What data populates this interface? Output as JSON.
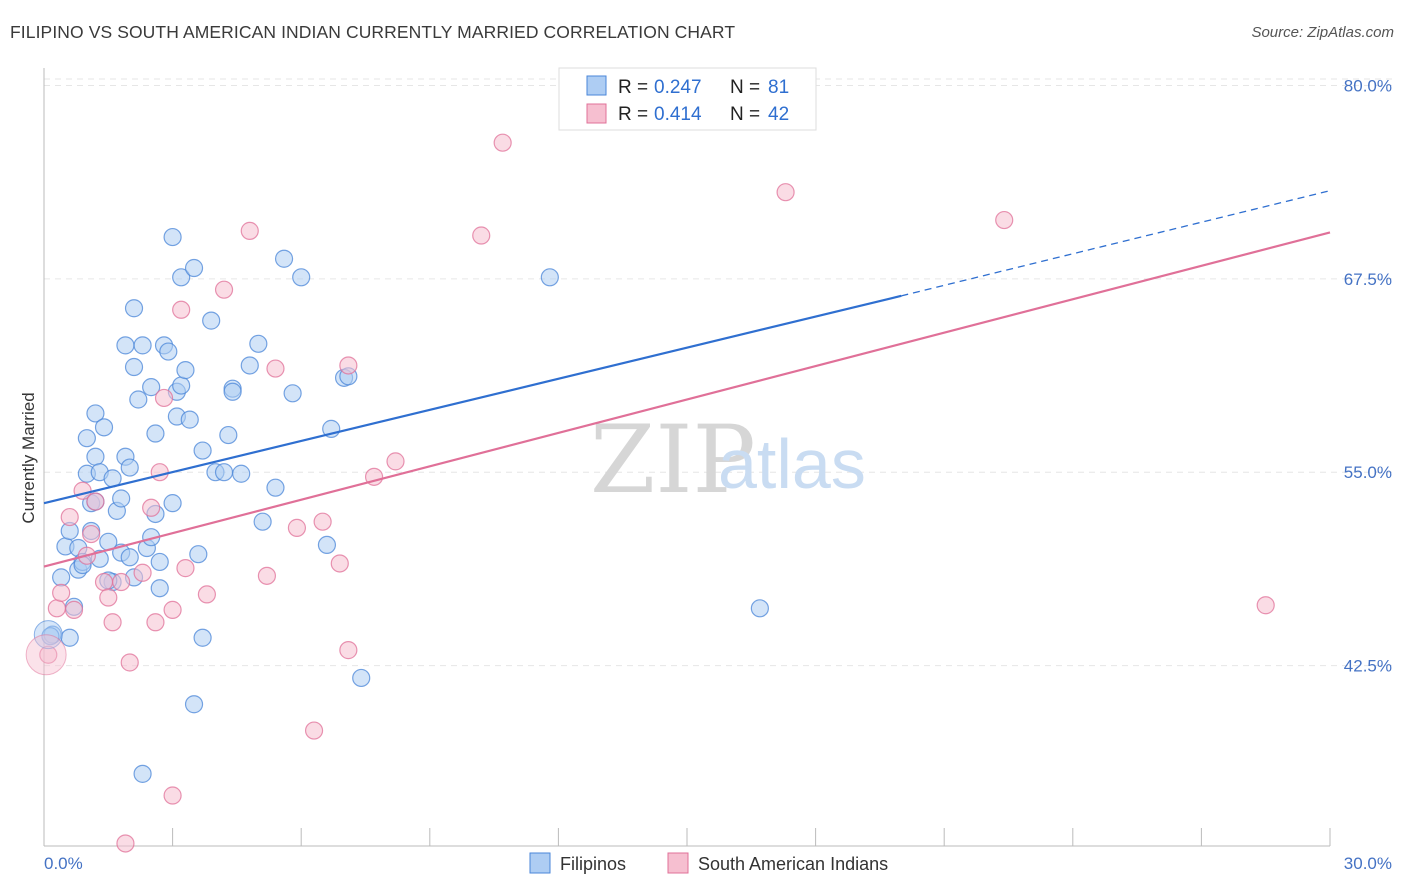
{
  "title": "FILIPINO VS SOUTH AMERICAN INDIAN CURRENTLY MARRIED CORRELATION CHART",
  "source": "Source: ZipAtlas.com",
  "watermark": {
    "zip": "ZIP",
    "atlas": "atlas"
  },
  "chart_data": {
    "type": "scatter",
    "ylabel": "Currently Married",
    "xlabel": "",
    "xlim": [
      0,
      30
    ],
    "ylim": [
      32,
      81
    ],
    "x_tick_labels": [
      "0.0%",
      "30.0%"
    ],
    "y_ticks": [
      42.5,
      55.0,
      67.5,
      80.0
    ],
    "y_tick_labels": [
      "42.5%",
      "55.0%",
      "67.5%",
      "80.0%"
    ],
    "grid": "horizontal dashed",
    "legend_position": "top-center",
    "legend": [
      {
        "r_label": "R =",
        "r_value": "0.247",
        "n_label": "N =",
        "n_value": "81"
      },
      {
        "r_label": "R =",
        "r_value": "0.414",
        "n_label": "N =",
        "n_value": "42"
      }
    ],
    "series": [
      {
        "name": "Filipinos",
        "color": "#4a86d8",
        "fill": "#aecdf3",
        "trend": {
          "x0": 0,
          "y0": 53.0,
          "x1": 20,
          "y1": 66.4,
          "dash_to_x": 30,
          "dash_to_y": 73.2
        },
        "points": [
          [
            0.2,
            44.5
          ],
          [
            0.4,
            48.2
          ],
          [
            0.5,
            50.2
          ],
          [
            0.6,
            51.2
          ],
          [
            0.6,
            44.3
          ],
          [
            0.7,
            46.3
          ],
          [
            0.8,
            48.7
          ],
          [
            0.8,
            50.1
          ],
          [
            0.9,
            49.2
          ],
          [
            1.0,
            54.9
          ],
          [
            1.0,
            57.2
          ],
          [
            1.1,
            53.0
          ],
          [
            1.1,
            51.2
          ],
          [
            1.2,
            56.0
          ],
          [
            1.2,
            58.8
          ],
          [
            1.3,
            55.0
          ],
          [
            1.3,
            49.4
          ],
          [
            1.4,
            57.9
          ],
          [
            1.5,
            50.5
          ],
          [
            1.6,
            54.6
          ],
          [
            1.6,
            47.9
          ],
          [
            1.7,
            52.5
          ],
          [
            1.8,
            53.3
          ],
          [
            1.8,
            49.8
          ],
          [
            1.9,
            63.2
          ],
          [
            1.9,
            56.0
          ],
          [
            2.0,
            49.5
          ],
          [
            2.0,
            55.3
          ],
          [
            2.1,
            61.8
          ],
          [
            2.1,
            65.6
          ],
          [
            2.2,
            59.7
          ],
          [
            2.3,
            63.2
          ],
          [
            2.3,
            35.5
          ],
          [
            2.4,
            50.1
          ],
          [
            2.5,
            50.8
          ],
          [
            2.5,
            60.5
          ],
          [
            2.6,
            57.5
          ],
          [
            2.6,
            52.3
          ],
          [
            2.7,
            49.2
          ],
          [
            2.7,
            47.5
          ],
          [
            2.8,
            63.2
          ],
          [
            2.9,
            62.8
          ],
          [
            3.0,
            53.0
          ],
          [
            3.0,
            70.2
          ],
          [
            3.1,
            58.6
          ],
          [
            3.1,
            60.2
          ],
          [
            3.2,
            67.6
          ],
          [
            3.2,
            60.6
          ],
          [
            3.3,
            61.6
          ],
          [
            3.4,
            58.4
          ],
          [
            3.5,
            68.2
          ],
          [
            3.5,
            40.0
          ],
          [
            3.6,
            49.7
          ],
          [
            3.7,
            44.3
          ],
          [
            3.7,
            56.4
          ],
          [
            3.9,
            64.8
          ],
          [
            4.0,
            55.0
          ],
          [
            4.2,
            55.0
          ],
          [
            4.3,
            57.4
          ],
          [
            4.4,
            60.4
          ],
          [
            4.4,
            60.2
          ],
          [
            4.6,
            54.9
          ],
          [
            4.8,
            61.9
          ],
          [
            5.0,
            63.3
          ],
          [
            5.1,
            51.8
          ],
          [
            5.4,
            54.0
          ],
          [
            5.6,
            68.8
          ],
          [
            5.8,
            60.1
          ],
          [
            6.0,
            67.6
          ],
          [
            6.6,
            50.3
          ],
          [
            6.7,
            57.8
          ],
          [
            7.0,
            61.1
          ],
          [
            7.1,
            61.2
          ],
          [
            7.4,
            41.7
          ],
          [
            11.8,
            67.6
          ],
          [
            16.7,
            46.2
          ],
          [
            0.15,
            44.4
          ],
          [
            1.5,
            48.0
          ],
          [
            2.1,
            48.2
          ],
          [
            0.9,
            49.0
          ],
          [
            1.2,
            53.1
          ]
        ]
      },
      {
        "name": "South American Indians",
        "color": "#e07098",
        "fill": "#f6bfd0",
        "trend": {
          "x0": 0,
          "y0": 48.9,
          "x1": 30,
          "y1": 70.5
        },
        "points": [
          [
            0.1,
            43.2
          ],
          [
            0.3,
            46.2
          ],
          [
            0.4,
            47.2
          ],
          [
            0.6,
            52.1
          ],
          [
            0.7,
            46.1
          ],
          [
            0.9,
            53.8
          ],
          [
            1.0,
            49.6
          ],
          [
            1.1,
            51.0
          ],
          [
            1.2,
            53.1
          ],
          [
            1.4,
            47.9
          ],
          [
            1.5,
            46.9
          ],
          [
            1.6,
            45.3
          ],
          [
            1.8,
            47.9
          ],
          [
            1.9,
            31.0
          ],
          [
            2.0,
            42.7
          ],
          [
            2.3,
            48.5
          ],
          [
            2.5,
            52.7
          ],
          [
            2.6,
            45.3
          ],
          [
            2.7,
            55.0
          ],
          [
            2.8,
            59.8
          ],
          [
            3.0,
            46.1
          ],
          [
            3.0,
            34.1
          ],
          [
            3.2,
            65.5
          ],
          [
            3.3,
            48.8
          ],
          [
            3.8,
            47.1
          ],
          [
            4.2,
            66.8
          ],
          [
            4.8,
            70.6
          ],
          [
            5.2,
            48.3
          ],
          [
            5.4,
            61.7
          ],
          [
            5.9,
            51.4
          ],
          [
            6.3,
            38.3
          ],
          [
            6.5,
            51.8
          ],
          [
            6.9,
            49.1
          ],
          [
            7.1,
            61.9
          ],
          [
            7.1,
            43.5
          ],
          [
            7.7,
            54.7
          ],
          [
            8.2,
            55.7
          ],
          [
            10.2,
            70.3
          ],
          [
            10.7,
            76.3
          ],
          [
            17.3,
            73.1
          ],
          [
            22.4,
            71.3
          ],
          [
            28.5,
            46.4
          ]
        ]
      }
    ]
  }
}
